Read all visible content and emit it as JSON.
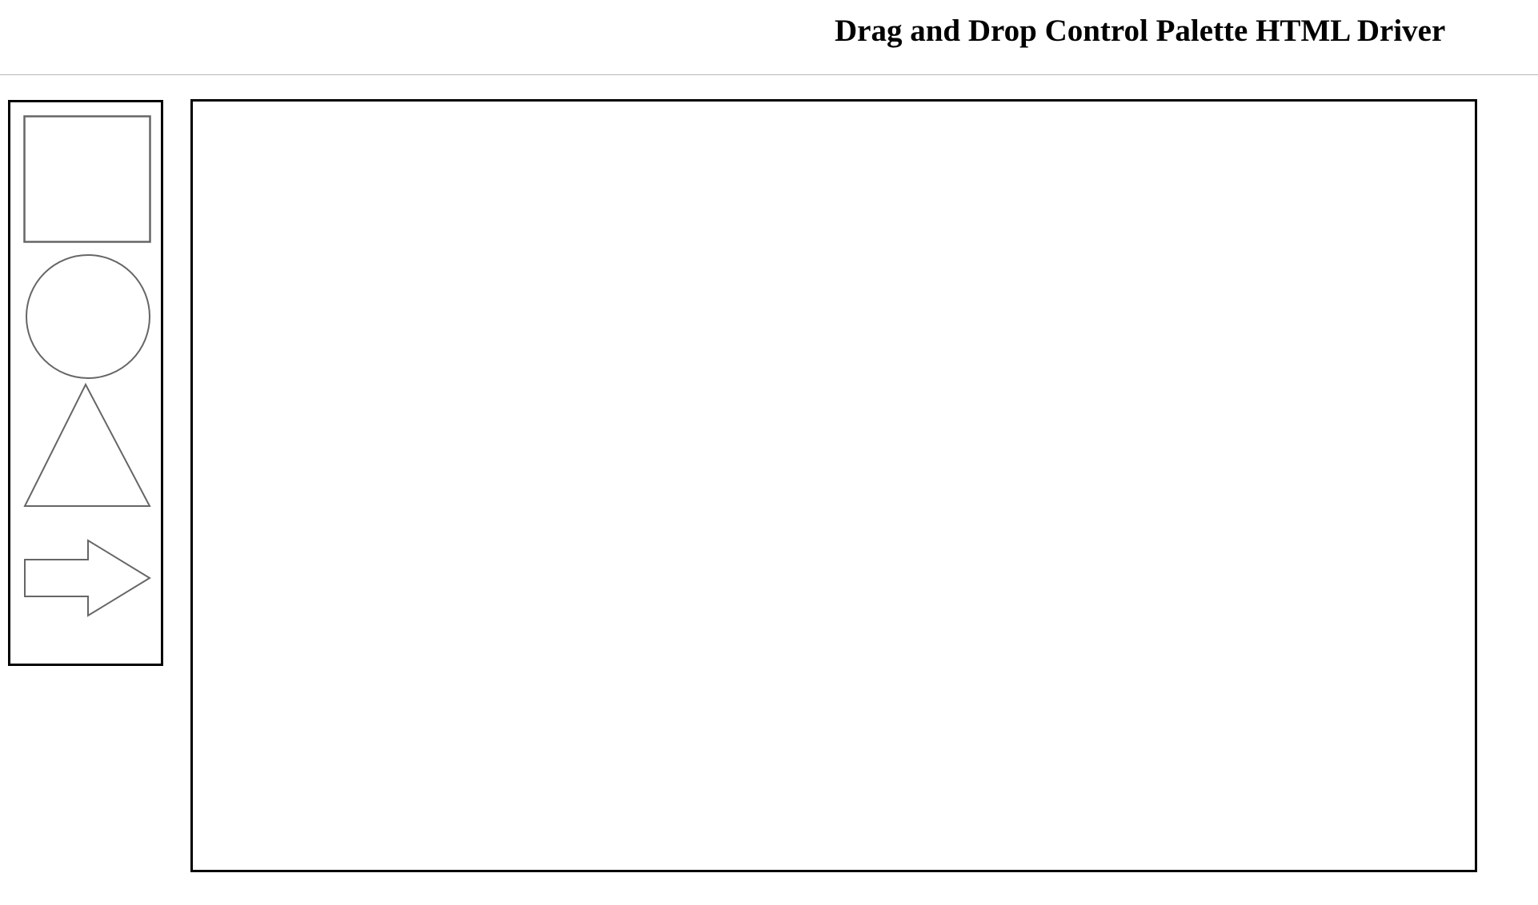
{
  "header": {
    "title": "Drag and Drop Control Palette HTML Driver"
  },
  "palette": {
    "items": [
      {
        "shape": "square-icon"
      },
      {
        "shape": "circle-icon"
      },
      {
        "shape": "triangle-icon"
      },
      {
        "shape": "arrow-right-icon"
      }
    ],
    "stroke_color": "#666666"
  },
  "colors": {
    "border": "#000000",
    "divider": "#b8b8b8",
    "background": "#ffffff"
  }
}
